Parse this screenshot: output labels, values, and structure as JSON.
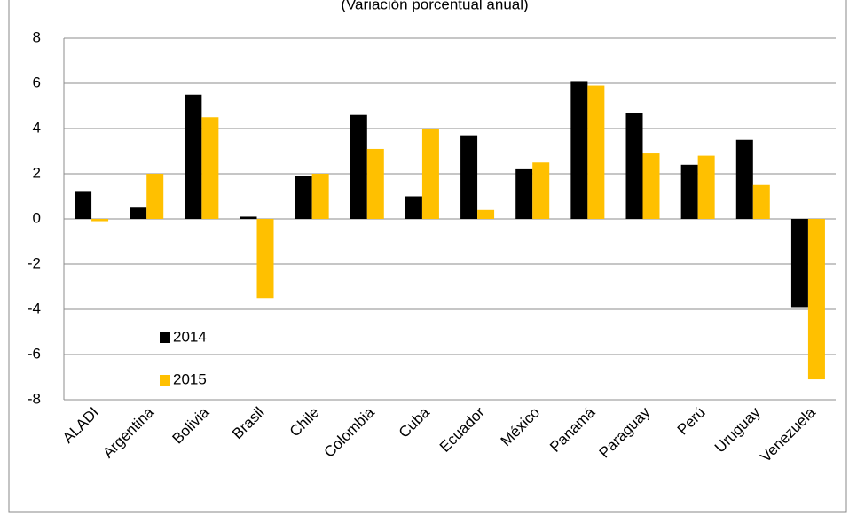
{
  "chart_data": {
    "type": "bar",
    "subtitle": "(Variación porcentual anual)",
    "categories": [
      "ALADI",
      "Argentina",
      "Bolivia",
      "Brasil",
      "Chile",
      "Colombia",
      "Cuba",
      "Ecuador",
      "México",
      "Panamá",
      "Paraguay",
      "Perú",
      "Uruguay",
      "Venezuela"
    ],
    "series": [
      {
        "name": "2014",
        "color": "#000000",
        "values": [
          1.2,
          0.5,
          5.5,
          0.1,
          1.9,
          4.6,
          1.0,
          3.7,
          2.2,
          6.1,
          4.7,
          2.4,
          3.5,
          -3.9
        ]
      },
      {
        "name": "2015",
        "color": "#ffc000",
        "values": [
          -0.1,
          2.0,
          4.5,
          -3.5,
          2.0,
          3.1,
          4.0,
          0.4,
          2.5,
          5.9,
          2.9,
          2.8,
          1.5,
          -7.1
        ]
      }
    ],
    "ylim": [
      -8,
      8
    ],
    "yticks": [
      -8,
      -6,
      -4,
      -2,
      0,
      2,
      4,
      6,
      8
    ],
    "grid": true,
    "legend": "lower left"
  }
}
